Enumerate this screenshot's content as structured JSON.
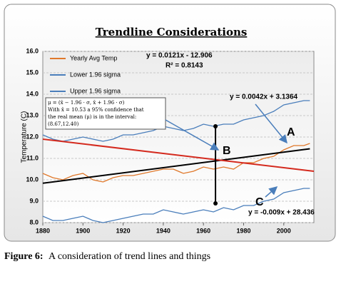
{
  "chart_data": {
    "type": "line",
    "title": "Trendline Considerations",
    "y_label": "Temperature (C)",
    "x": [
      1880,
      1885,
      1890,
      1895,
      1900,
      1905,
      1910,
      1915,
      1920,
      1925,
      1930,
      1935,
      1940,
      1945,
      1950,
      1955,
      1960,
      1965,
      1970,
      1975,
      1980,
      1985,
      1990,
      1995,
      2000,
      2005,
      2010,
      2013
    ],
    "series": [
      {
        "name": "Yearly Avg Temp",
        "color": "#e0782a",
        "values": [
          10.3,
          10.1,
          10.0,
          10.2,
          10.3,
          10.0,
          9.9,
          10.1,
          10.2,
          10.2,
          10.3,
          10.4,
          10.5,
          10.5,
          10.3,
          10.4,
          10.6,
          10.5,
          10.6,
          10.5,
          10.8,
          10.8,
          11.0,
          11.1,
          11.4,
          11.6,
          11.6,
          11.7
        ]
      },
      {
        "name": "Lower 1.96 sigma",
        "color": "#4a7ebb",
        "values": [
          8.3,
          8.1,
          8.1,
          8.2,
          8.3,
          8.1,
          8.0,
          8.1,
          8.2,
          8.3,
          8.4,
          8.4,
          8.6,
          8.5,
          8.4,
          8.5,
          8.6,
          8.5,
          8.7,
          8.6,
          8.8,
          8.8,
          9.0,
          9.1,
          9.4,
          9.5,
          9.6,
          9.6
        ]
      },
      {
        "name": "Upper 1.96 sigma",
        "color": "#4a7ebb",
        "values": [
          12.1,
          11.9,
          11.8,
          11.9,
          12.0,
          11.9,
          11.8,
          11.9,
          12.1,
          12.1,
          12.2,
          12.3,
          12.5,
          12.4,
          12.3,
          12.4,
          12.6,
          12.5,
          12.6,
          12.6,
          12.8,
          12.9,
          13.0,
          13.2,
          13.5,
          13.6,
          13.7,
          13.7
        ]
      }
    ],
    "trendlines": [
      {
        "color": "#000000",
        "x": [
          1880,
          2013
        ],
        "values": [
          9.84,
          11.45
        ]
      },
      {
        "color": "#d42a1e",
        "x": [
          1880,
          2015
        ],
        "values": [
          11.9,
          10.4
        ]
      }
    ],
    "interval": {
      "x": 1966,
      "low": 8.9,
      "high": 12.5
    },
    "xlim": [
      1880,
      2015
    ],
    "xticks": [
      1880,
      1900,
      1920,
      1940,
      1960,
      1980,
      2000
    ],
    "ylim": [
      8,
      16
    ],
    "yticks": [
      {
        "value": 8,
        "label": "8.0"
      },
      {
        "value": 9,
        "label": "9.0"
      },
      {
        "value": 10,
        "label": "10.0"
      },
      {
        "value": 11,
        "label": "11.0"
      },
      {
        "value": 12,
        "label": "12.0"
      },
      {
        "value": 13,
        "label": "13.0"
      },
      {
        "value": 14,
        "label": "14.0"
      },
      {
        "value": 15,
        "label": "15.0"
      },
      {
        "value": 16,
        "label": "16.0"
      }
    ],
    "grid": true,
    "equations": [
      "y = 0.0121x - 12.906",
      "R² = 0.8143",
      "y = 0.0042x + 3.1364",
      "y = -0.009x + 28.436"
    ],
    "point_labels": [
      "A",
      "B",
      "C"
    ],
    "formula_box": [
      "μ = (x̄ − 1.96 · σ, x̄ + 1.96 · σ)",
      "With x̄ = 10.53 a 95% confidence that",
      "the real mean (μ) is in the interval:",
      "(8.67,12.40)"
    ]
  },
  "caption": {
    "label": "Figure 6:",
    "text": "A consideration of trend lines and things"
  }
}
